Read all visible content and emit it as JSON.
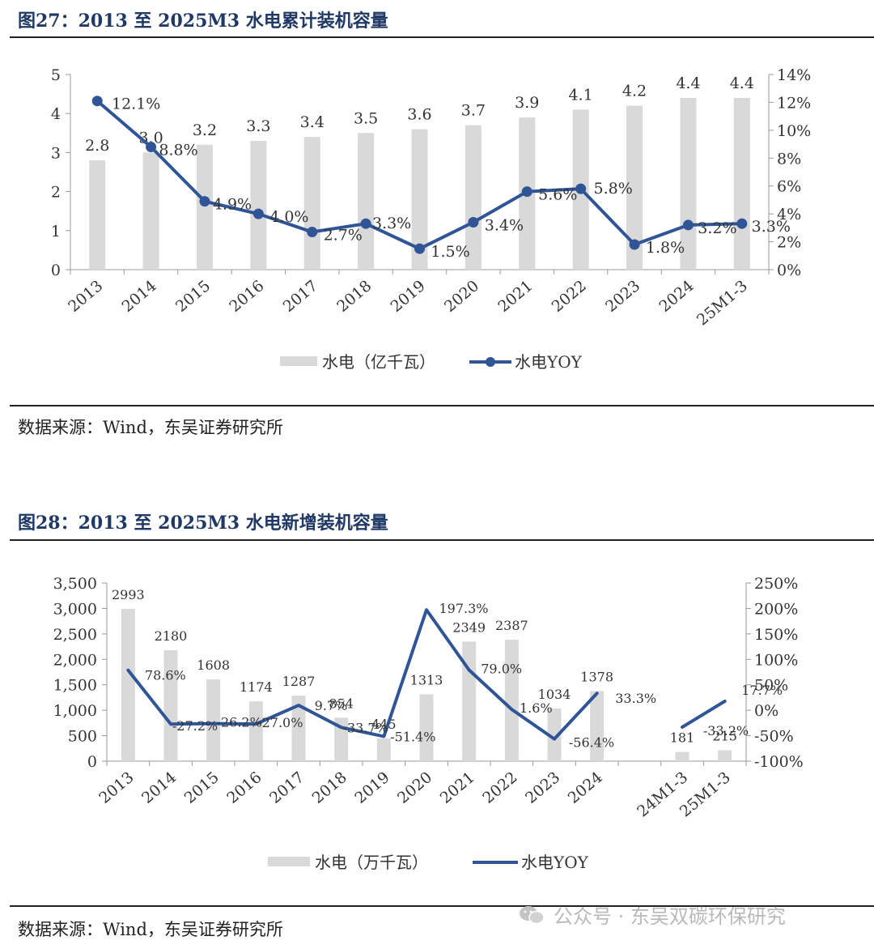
{
  "figures": [
    {
      "title": "图27：2013 至 2025M3 水电累计装机容量",
      "source": "数据来源：Wind，东吴证券研究所"
    },
    {
      "title": "图28：2013 至 2025M3 水电新增装机容量",
      "source": "数据来源：Wind，东吴证券研究所"
    }
  ],
  "watermark": "公众号 · 东吴双碳环保研究",
  "chart_data": [
    {
      "type": "bar",
      "categories": [
        "2013",
        "2014",
        "2015",
        "2016",
        "2017",
        "2018",
        "2019",
        "2020",
        "2021",
        "2022",
        "2023",
        "2024",
        "25M1-3"
      ],
      "series": [
        {
          "name": "水电（亿千瓦）",
          "type": "bar",
          "axis": "left",
          "values": [
            2.8,
            3.0,
            3.2,
            3.3,
            3.4,
            3.5,
            3.6,
            3.7,
            3.9,
            4.1,
            4.2,
            4.4,
            4.4
          ],
          "labels": [
            "2.8",
            "3.0",
            "3.2",
            "3.3",
            "3.4",
            "3.5",
            "3.6",
            "3.7",
            "3.9",
            "4.1",
            "4.2",
            "4.4",
            "4.4"
          ]
        },
        {
          "name": "水电YOY",
          "type": "line",
          "axis": "right",
          "markers": true,
          "values": [
            12.1,
            8.8,
            4.9,
            4.0,
            2.7,
            3.3,
            1.5,
            3.4,
            5.6,
            5.8,
            1.8,
            3.2,
            3.3
          ],
          "labels": [
            "12.1%",
            "8.8%",
            "4.9%",
            "4.0%",
            "2.7%",
            "3.3%",
            "1.5%",
            "3.4%",
            "5.6%",
            "5.8%",
            "1.8%",
            "3.2%",
            "3.3%"
          ]
        }
      ],
      "y_left": {
        "min": 0,
        "max": 5,
        "ticks": [
          "0",
          "1",
          "2",
          "3",
          "4",
          "5"
        ]
      },
      "y_right": {
        "min": 0,
        "max": 14,
        "ticks": [
          "0%",
          "2%",
          "4%",
          "6%",
          "8%",
          "10%",
          "12%",
          "14%"
        ]
      },
      "legend_placement": "bottom",
      "colors": {
        "bar": "#d9d9d9",
        "line": "#2f5597"
      }
    },
    {
      "type": "bar",
      "categories": [
        "2013",
        "2014",
        "2015",
        "2016",
        "2017",
        "2018",
        "2019",
        "2020",
        "2021",
        "2022",
        "2023",
        "2024",
        "",
        "24M1-3",
        "25M1-3"
      ],
      "series": [
        {
          "name": "水电（万千瓦）",
          "type": "bar",
          "axis": "left",
          "values": [
            2993,
            2180,
            1608,
            1174,
            1287,
            854,
            445,
            1313,
            2349,
            2387,
            1034,
            1378,
            null,
            181,
            215
          ],
          "labels": [
            "2993",
            "2180",
            "1608",
            "1174",
            "1287",
            "854",
            "445",
            "1313",
            "2349",
            "2387",
            "1034",
            "1378",
            "",
            "181",
            "215"
          ]
        },
        {
          "name": "水电YOY",
          "type": "line",
          "axis": "right",
          "markers": false,
          "values": [
            78.6,
            -27.2,
            -26.2,
            -27.0,
            9.7,
            -33.7,
            -51.4,
            197.3,
            79.0,
            1.6,
            -56.4,
            33.3,
            null,
            -33.2,
            17.7
          ],
          "labels": [
            "78.6%",
            "-27.2%",
            "-26.2%",
            "-27.0%",
            "9.7%",
            "-33.7%",
            "-51.4%",
            "197.3%",
            "79.0%",
            "1.6%",
            "-56.4%",
            "33.3%",
            "",
            "-33.2%",
            "17.7%"
          ]
        }
      ],
      "y_left": {
        "min": 0,
        "max": 3500,
        "ticks": [
          "0",
          "500",
          "1,000",
          "1,500",
          "2,000",
          "2,500",
          "3,000",
          "3,500"
        ]
      },
      "y_right": {
        "min": -100,
        "max": 250,
        "ticks": [
          "-100%",
          "-50%",
          "0%",
          "50%",
          "100%",
          "150%",
          "200%",
          "250%"
        ]
      },
      "legend_placement": "bottom",
      "colors": {
        "bar": "#d9d9d9",
        "line": "#2f5597"
      }
    }
  ]
}
